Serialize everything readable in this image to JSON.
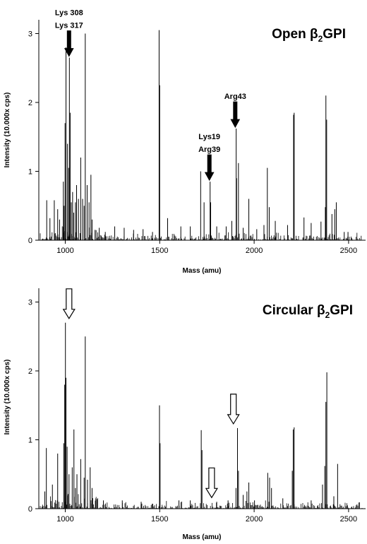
{
  "chart_data": [
    {
      "type": "bar",
      "title": {
        "prefix": "Open β",
        "sub": "2",
        "suffix": "GPI"
      },
      "xlabel": "Mass (amu)",
      "ylabel": "Intensity (10.000x cps)",
      "xlim": [
        860,
        2590
      ],
      "ylim": [
        0,
        3.2
      ],
      "xticks": [
        1000,
        1500,
        2000,
        2500
      ],
      "yticks": [
        0,
        1,
        2,
        3
      ],
      "peaks": {
        "x": [
          900,
          917,
          940,
          958,
          968,
          988,
          992,
          997,
          1002,
          1010,
          1016,
          1020,
          1024,
          1030,
          1037,
          1043,
          1052,
          1058,
          1068,
          1080,
          1090,
          1098,
          1104,
          1114,
          1124,
          1134,
          1140,
          1156,
          1178,
          1210,
          1260,
          1310,
          1360,
          1410,
          1460,
          1495,
          1498,
          1540,
          1610,
          1660,
          1715,
          1733,
          1765,
          1768,
          1800,
          1850,
          1880,
          1903,
          1905,
          1915,
          1940,
          1970,
          2012,
          2050,
          2068,
          2078,
          2110,
          2175,
          2207,
          2210,
          2262,
          2300,
          2352,
          2375,
          2378,
          2382,
          2410,
          2425,
          2433,
          2475,
          2495
        ],
        "y": [
          0.58,
          0.32,
          0.58,
          0.45,
          0.3,
          0.85,
          0.5,
          1.7,
          2.8,
          1.4,
          1.05,
          2.65,
          1.85,
          0.55,
          0.7,
          0.4,
          0.55,
          0.8,
          0.6,
          1.2,
          0.6,
          0.5,
          3.0,
          0.8,
          0.55,
          0.95,
          0.3,
          0.15,
          0.18,
          0.12,
          0.2,
          0.18,
          0.15,
          0.16,
          0.12,
          3.05,
          2.25,
          0.32,
          0.2,
          0.2,
          1.0,
          0.55,
          0.85,
          0.55,
          0.2,
          0.2,
          0.28,
          1.62,
          0.9,
          1.12,
          0.18,
          0.6,
          0.16,
          0.22,
          1.05,
          0.48,
          0.28,
          0.22,
          1.82,
          1.85,
          0.33,
          0.25,
          0.27,
          0.48,
          2.1,
          1.75,
          0.38,
          0.45,
          0.55,
          0.12,
          0.12
        ]
      },
      "annotations": [
        {
          "lines": [
            "Lys 308",
            "Lys 317"
          ],
          "x": 1020,
          "arrow": "filled"
        },
        {
          "lines": [
            "Lys19",
            "Arg39"
          ],
          "x": 1763,
          "arrow": "filled"
        },
        {
          "lines": [
            "Arg43"
          ],
          "x": 1900,
          "arrow": "filled"
        }
      ]
    },
    {
      "type": "bar",
      "title": {
        "prefix": "Circular β",
        "sub": "2",
        "suffix": "GPI"
      },
      "xlabel": "Mass (amu)",
      "ylabel": "Intensity (10.000x cps)",
      "xlim": [
        860,
        2590
      ],
      "ylim": [
        0,
        3.2
      ],
      "xticks": [
        1000,
        1500,
        2000,
        2500
      ],
      "yticks": [
        0,
        1,
        2,
        3
      ],
      "peaks": {
        "x": [
          890,
          898,
          930,
          958,
          990,
          995,
          999,
          1002,
          1008,
          1018,
          1035,
          1044,
          1052,
          1060,
          1080,
          1098,
          1104,
          1116,
          1130,
          1140,
          1160,
          1200,
          1300,
          1400,
          1497,
          1500,
          1600,
          1660,
          1718,
          1722,
          1800,
          1860,
          1902,
          1910,
          1915,
          1940,
          1960,
          1970,
          2000,
          2070,
          2080,
          2090,
          2150,
          2200,
          2205,
          2210,
          2300,
          2360,
          2372,
          2378,
          2383,
          2420,
          2440
        ],
        "y": [
          0.25,
          0.88,
          0.35,
          0.8,
          0.95,
          1.8,
          2.7,
          1.9,
          0.9,
          0.5,
          0.6,
          1.15,
          0.3,
          0.5,
          0.72,
          0.45,
          2.5,
          0.42,
          0.6,
          0.3,
          0.15,
          0.12,
          0.12,
          0.1,
          1.5,
          0.95,
          0.12,
          0.12,
          1.14,
          0.85,
          0.1,
          0.12,
          0.3,
          1.17,
          0.55,
          0.2,
          0.25,
          0.38,
          0.12,
          0.52,
          0.45,
          0.3,
          0.15,
          0.55,
          1.15,
          1.18,
          0.12,
          0.35,
          0.62,
          1.55,
          1.98,
          0.18,
          0.65
        ]
      },
      "annotations": [
        {
          "lines": [],
          "x": 1020,
          "arrow": "open"
        },
        {
          "lines": [],
          "x": 1775,
          "arrow": "open"
        },
        {
          "lines": [],
          "x": 1890,
          "arrow": "open"
        }
      ]
    }
  ]
}
